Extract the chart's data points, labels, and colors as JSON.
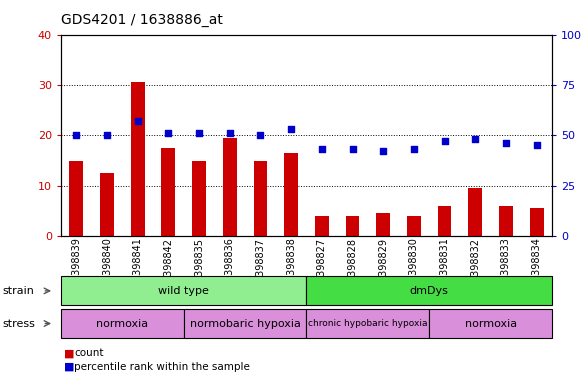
{
  "title": "GDS4201 / 1638886_at",
  "samples": [
    "GSM398839",
    "GSM398840",
    "GSM398841",
    "GSM398842",
    "GSM398835",
    "GSM398836",
    "GSM398837",
    "GSM398838",
    "GSM398827",
    "GSM398828",
    "GSM398829",
    "GSM398830",
    "GSM398831",
    "GSM398832",
    "GSM398833",
    "GSM398834"
  ],
  "counts": [
    15,
    12.5,
    30.5,
    17.5,
    15,
    19.5,
    15,
    16.5,
    4,
    4,
    4.5,
    4,
    6,
    9.5,
    6,
    5.5
  ],
  "percentiles": [
    50,
    50,
    57,
    51,
    51,
    51,
    50,
    53,
    43,
    43,
    42,
    43,
    47,
    48,
    46,
    45
  ],
  "bar_color": "#cc0000",
  "dot_color": "#0000cc",
  "ylim_left": [
    0,
    40
  ],
  "ylim_right": [
    0,
    100
  ],
  "yticks_left": [
    0,
    10,
    20,
    30,
    40
  ],
  "yticks_right": [
    0,
    25,
    50,
    75,
    100
  ],
  "ytick_labels_right": [
    "0",
    "25",
    "50",
    "75",
    "100%"
  ],
  "strain_groups": [
    {
      "label": "wild type",
      "start": 0,
      "end": 8,
      "color": "#90ee90"
    },
    {
      "label": "dmDys",
      "start": 8,
      "end": 16,
      "color": "#44dd44"
    }
  ],
  "stress_groups": [
    {
      "label": "normoxia",
      "start": 0,
      "end": 4,
      "color": "#da8fda"
    },
    {
      "label": "normobaric hypoxia",
      "start": 4,
      "end": 8,
      "color": "#da8fda"
    },
    {
      "label": "chronic hypobaric hypoxia",
      "start": 8,
      "end": 12,
      "color": "#da8fda"
    },
    {
      "label": "normoxia",
      "start": 12,
      "end": 16,
      "color": "#da8fda"
    }
  ],
  "plot_bg": "#ffffff",
  "fig_bg": "#ffffff"
}
